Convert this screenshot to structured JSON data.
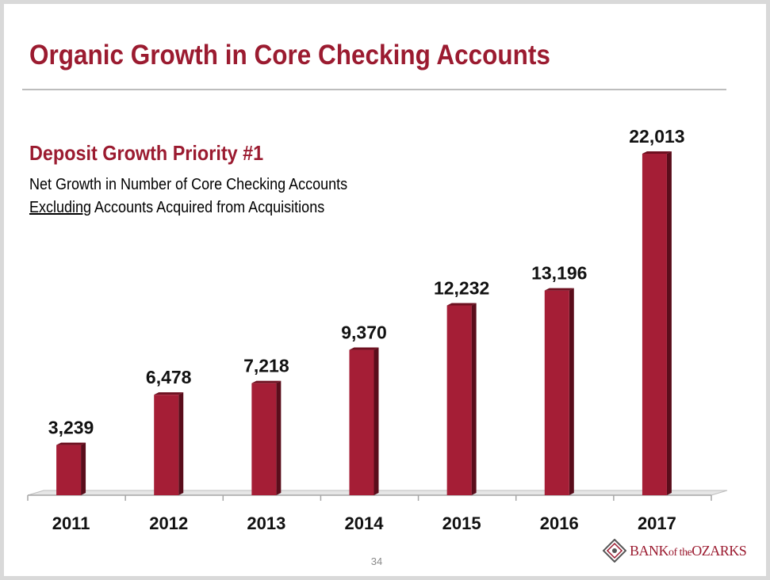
{
  "slide": {
    "title": "Organic Growth in Core Checking Accounts",
    "subtitle": "Deposit Growth Priority #1",
    "description_line1": "Net Growth in Number of Core Checking Accounts",
    "description_line2_underlined": "Excluding",
    "description_line2_rest": " Accounts Acquired from Acquisitions",
    "page_number": "34"
  },
  "logo": {
    "text_bank": "BANK",
    "text_of_the": "of the",
    "text_ozarks": "OZARKS"
  },
  "colors": {
    "accent": "#9b1b30",
    "bar": "#a51e36",
    "bar_side": "#5a0d1b"
  },
  "chart_data": {
    "type": "bar",
    "title": "",
    "xlabel": "",
    "ylabel": "",
    "categories": [
      "2011",
      "2012",
      "2013",
      "2014",
      "2015",
      "2016",
      "2017"
    ],
    "values": [
      3239,
      6478,
      7218,
      9370,
      12232,
      13196,
      22013
    ],
    "value_labels": [
      "3,239",
      "6,478",
      "7,218",
      "9,370",
      "12,232",
      "13,196",
      "22,013"
    ],
    "ylim": [
      0,
      24000
    ],
    "grid": false,
    "legend": "none"
  }
}
